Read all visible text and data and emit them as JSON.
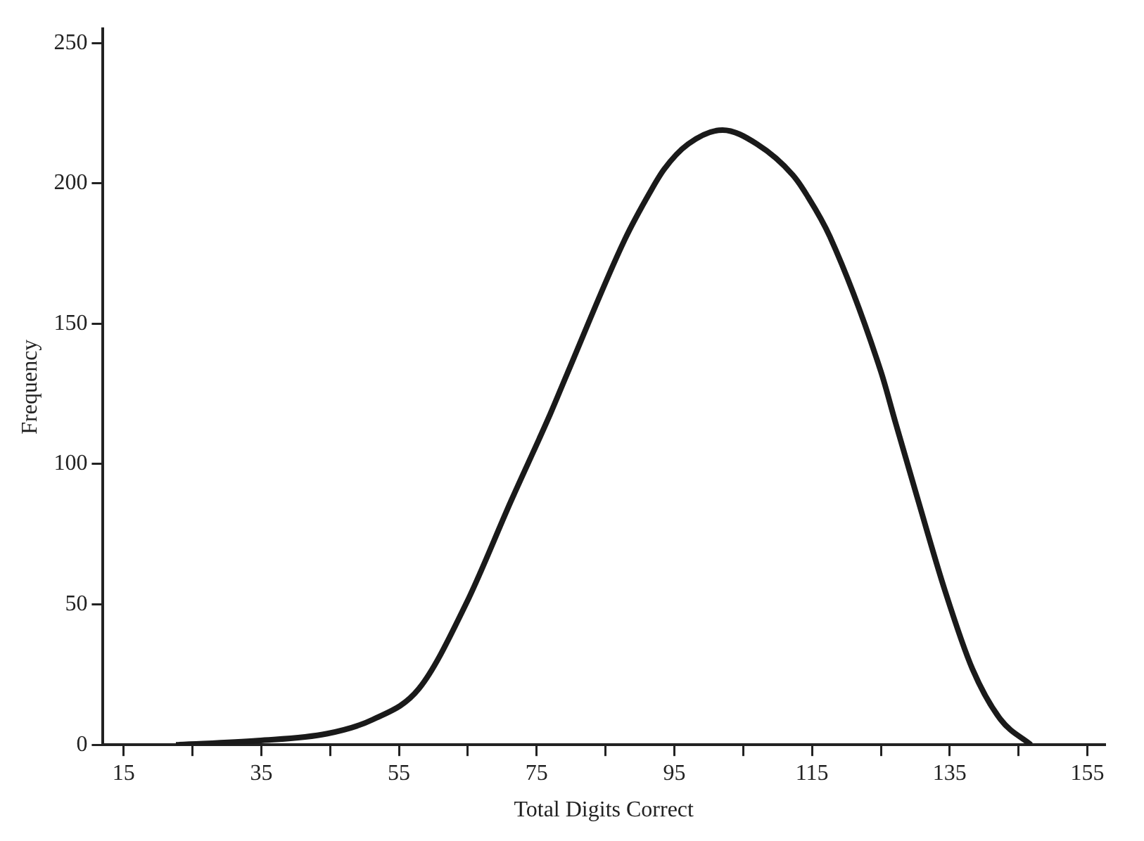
{
  "chart_data": {
    "type": "line",
    "xlabel": "Total Digits Correct",
    "ylabel": "Frequency",
    "x": [
      22.6,
      34.5,
      44.6,
      51.2,
      57.9,
      64.7,
      71.3,
      77,
      79.4,
      87.8,
      91.5,
      93.5,
      97,
      102,
      107,
      112.2,
      114.2,
      117.6,
      125,
      127.1,
      130.3,
      134.3,
      138.3,
      142.4,
      146.8
    ],
    "values": [
      0,
      1.5,
      4,
      9,
      20,
      50,
      87,
      118,
      132,
      180,
      197,
      205,
      214,
      219,
      214,
      203,
      196,
      181,
      133,
      115,
      88,
      55,
      27,
      9,
      0
    ],
    "color": "#1a1a1a",
    "xlim": [
      12,
      157.5
    ],
    "ylim": [
      0,
      255
    ],
    "xticks": [
      15,
      {
        "value": 25,
        "label": null
      },
      35,
      {
        "value": 45,
        "label": null
      },
      55,
      {
        "value": 65,
        "label": null
      },
      75,
      {
        "value": 85,
        "label": null
      },
      95,
      {
        "value": 105,
        "label": null
      },
      115,
      {
        "value": 125,
        "label": null
      },
      135,
      {
        "value": 145,
        "label": null
      },
      155
    ],
    "yticks": [
      0,
      50,
      100,
      150,
      200,
      250
    ],
    "grid": false,
    "legend": false,
    "marker": "none",
    "line_style": "solid"
  }
}
